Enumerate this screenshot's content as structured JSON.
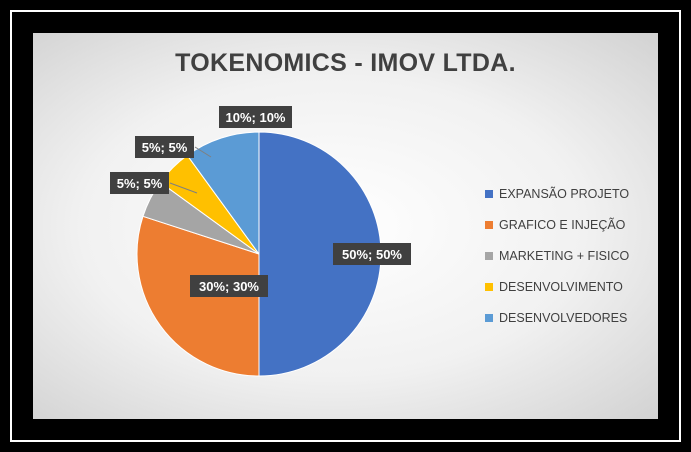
{
  "chart_data": {
    "type": "pie",
    "title": "TOKENOMICS - IMOV LTDA.",
    "categories": [
      "EXPANSÃO PROJETO",
      "GRAFICO E INJEÇÃO",
      "MARKETING + FISICO",
      "DESENVOLVIMENTO",
      "DESENVOLVEDORES"
    ],
    "values": [
      50,
      30,
      5,
      5,
      10
    ],
    "data_labels": [
      "50%; 50%",
      "30%; 30%",
      "5%; 5%",
      "5%; 5%",
      "10%; 10%"
    ],
    "colors": [
      "#4472C4",
      "#ED7D31",
      "#A5A5A5",
      "#FFC000",
      "#5B9BD5"
    ],
    "legend_position": "right",
    "start_angle_deg": 0,
    "direction": "clockwise"
  }
}
